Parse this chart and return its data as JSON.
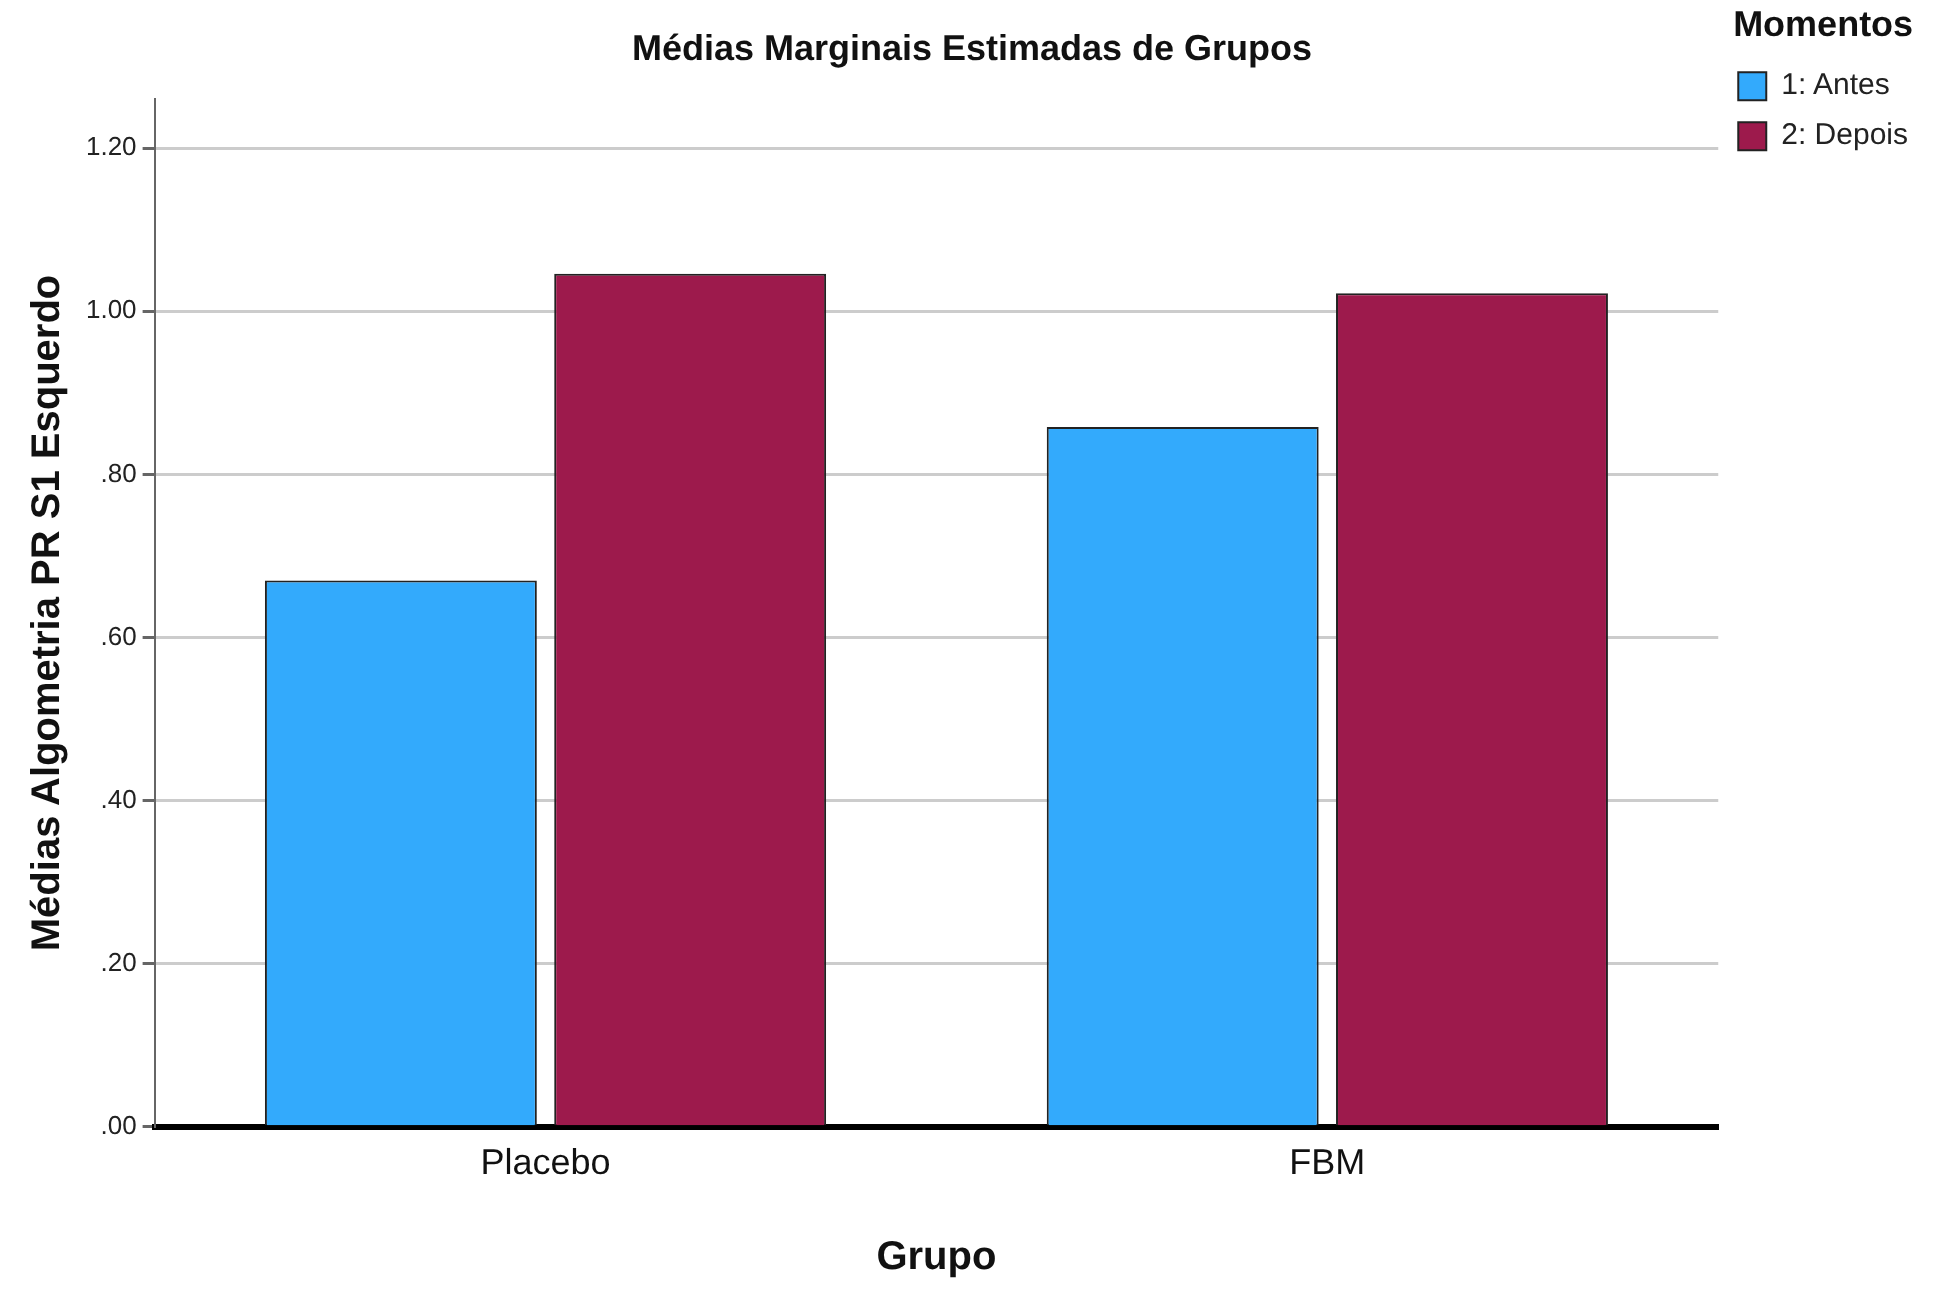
{
  "chart_data": {
    "type": "bar",
    "title": "Médias Marginais Estimadas de Grupos",
    "xlabel": "Grupo",
    "ylabel": "Médias Algometria PR S1 Esquerdo",
    "legend_title": "Momentos",
    "categories": [
      "Placebo",
      "FBM"
    ],
    "series": [
      {
        "name": "1: Antes",
        "color": "#33aafc",
        "values": [
          0.67,
          0.858
        ]
      },
      {
        "name": "2: Depois",
        "color": "#9d1a4c",
        "values": [
          1.046,
          1.022
        ]
      }
    ],
    "ylim": [
      0,
      1.26
    ],
    "yticks": [
      {
        "value": 0,
        "label": ".00"
      },
      {
        "value": 0.2,
        "label": ".20"
      },
      {
        "value": 0.4,
        "label": ".40"
      },
      {
        "value": 0.6,
        "label": ".60"
      },
      {
        "value": 0.8,
        "label": ".80"
      },
      {
        "value": 1,
        "label": "1.00"
      },
      {
        "value": 1.2,
        "label": "1.20"
      }
    ],
    "grid": "y",
    "legend": "top right"
  }
}
